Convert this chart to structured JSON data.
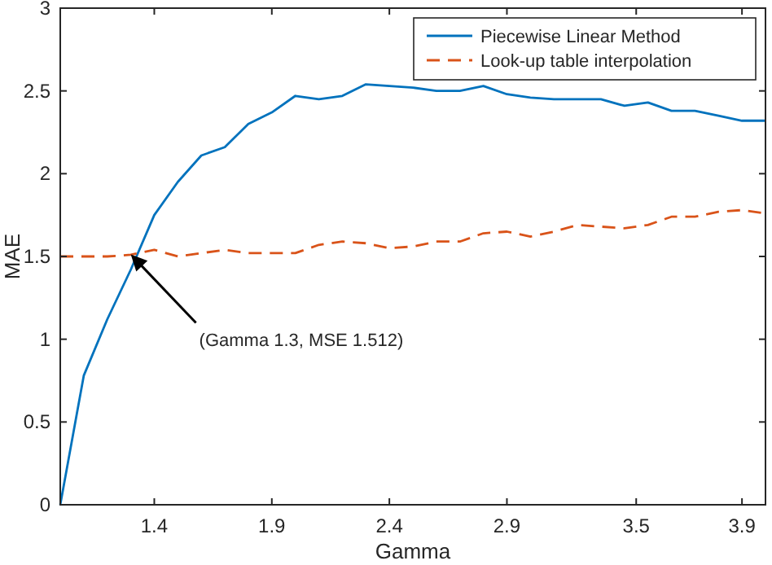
{
  "chart_data": {
    "type": "line",
    "xlabel": "Gamma",
    "ylabel": "MAE",
    "x": [
      1.0,
      1.1,
      1.2,
      1.3,
      1.4,
      1.5,
      1.6,
      1.7,
      1.8,
      1.9,
      2.0,
      2.1,
      2.2,
      2.3,
      2.4,
      2.5,
      2.6,
      2.7,
      2.8,
      2.9,
      3.0,
      3.1,
      3.2,
      3.3,
      3.4,
      3.5,
      3.6,
      3.7,
      3.8,
      3.9,
      4.0
    ],
    "series": [
      {
        "name": "Piecewise Linear Method",
        "color": "#0072bd",
        "line_style": "solid",
        "values": [
          0,
          0.78,
          1.12,
          1.42,
          1.75,
          1.95,
          2.11,
          2.16,
          2.3,
          2.37,
          2.47,
          2.45,
          2.47,
          2.54,
          2.53,
          2.52,
          2.5,
          2.5,
          2.53,
          2.48,
          2.46,
          2.45,
          2.45,
          2.45,
          2.41,
          2.43,
          2.38,
          2.38,
          2.35,
          2.32,
          2.32
        ]
      },
      {
        "name": "Look-up table interpolation",
        "color": "#d95319",
        "line_style": "dashed",
        "values": [
          1.5,
          1.5,
          1.5,
          1.51,
          1.54,
          1.5,
          1.52,
          1.54,
          1.52,
          1.52,
          1.52,
          1.57,
          1.59,
          1.58,
          1.55,
          1.56,
          1.59,
          1.59,
          1.64,
          1.65,
          1.62,
          1.65,
          1.69,
          1.68,
          1.67,
          1.69,
          1.74,
          1.74,
          1.77,
          1.78,
          1.76
        ]
      }
    ],
    "xlim": [
      1.0,
      4.0
    ],
    "xticks": [
      1.4,
      1.9,
      2.4,
      2.9,
      {
        "value": 3.45,
        "label": "3.5"
      },
      3.9
    ],
    "ylim": [
      0,
      3
    ],
    "yticks": [
      0,
      0.5,
      1,
      1.5,
      2,
      2.5,
      3
    ],
    "annotations": [
      {
        "text": "(Gamma 1.3, MSE 1.512)",
        "x": 1.3,
        "y": 1.512
      }
    ],
    "grid": false,
    "legend": "top right",
    "marker": "none"
  }
}
